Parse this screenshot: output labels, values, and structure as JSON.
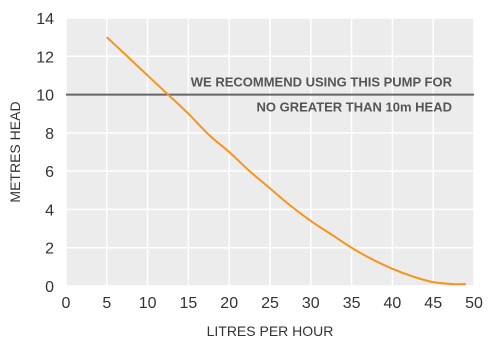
{
  "chart_data": {
    "type": "line",
    "title": "",
    "xlabel": "LITRES PER HOUR",
    "ylabel": "METRES HEAD",
    "xlim": [
      0,
      50
    ],
    "ylim": [
      0,
      14
    ],
    "x_ticks": [
      0,
      5,
      10,
      15,
      20,
      25,
      30,
      35,
      40,
      45,
      50
    ],
    "y_ticks": [
      0,
      2,
      4,
      6,
      8,
      10,
      12,
      14
    ],
    "grid": "vertical-and-horizontal",
    "plot_background": "#ececec",
    "grid_color": "#ffffff",
    "series": [
      {
        "color": "#f7941d",
        "x": [
          5,
          7.5,
          10,
          12.5,
          15,
          17.5,
          20,
          22.5,
          25,
          27.5,
          30,
          32.5,
          35,
          37.5,
          40,
          42.5,
          45,
          47.5,
          49
        ],
        "y": [
          13,
          12.0,
          11.0,
          10.0,
          9.0,
          7.9,
          7.0,
          6.0,
          5.1,
          4.2,
          3.4,
          2.7,
          2.0,
          1.4,
          0.9,
          0.5,
          0.2,
          0.1,
          0.1
        ]
      }
    ],
    "reference_line": {
      "y": 10,
      "color": "#666666"
    },
    "annotations": [
      {
        "text": "WE RECOMMEND USING THIS PUMP FOR"
      },
      {
        "text": "NO GREATER THAN 10m HEAD"
      }
    ]
  }
}
